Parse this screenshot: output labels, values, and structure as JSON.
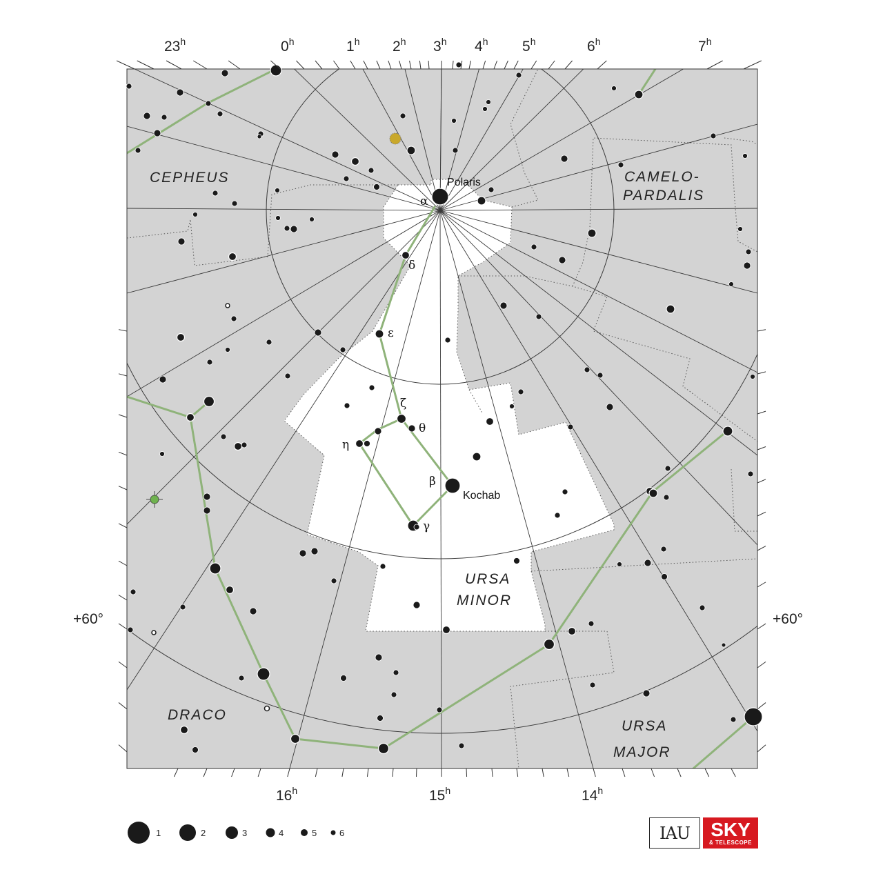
{
  "constellations": {
    "cepheus": "CEPHEUS",
    "camelopardalis_line1": "CAMELO-",
    "camelopardalis_line2": "PARDALIS",
    "ursa_minor_line1": "URSA",
    "ursa_minor_line2": "MINOR",
    "draco": "DRACO",
    "ursa_major_line1": "URSA",
    "ursa_major_line2": "MAJOR"
  },
  "ra_labels_top": [
    {
      "h": "23",
      "sup": "h"
    },
    {
      "h": "0",
      "sup": "h"
    },
    {
      "h": "1",
      "sup": "h"
    },
    {
      "h": "2",
      "sup": "h"
    },
    {
      "h": "3",
      "sup": "h"
    },
    {
      "h": "4",
      "sup": "h"
    },
    {
      "h": "5",
      "sup": "h"
    },
    {
      "h": "6",
      "sup": "h"
    },
    {
      "h": "7",
      "sup": "h"
    }
  ],
  "ra_labels_bottom": [
    {
      "h": "16",
      "sup": "h"
    },
    {
      "h": "15",
      "sup": "h"
    },
    {
      "h": "14",
      "sup": "h"
    }
  ],
  "dec_labels": {
    "left": "+60°",
    "right": "+60°"
  },
  "star_names": {
    "polaris": "Polaris",
    "kochab": "Kochab"
  },
  "greek_labels": {
    "alpha": "α",
    "delta": "δ",
    "epsilon": "ε",
    "zeta": "ζ",
    "theta": "θ",
    "eta": "η",
    "beta": "β",
    "gamma": "γ"
  },
  "legend": {
    "magnitudes": [
      "1",
      "2",
      "3",
      "4",
      "5",
      "6"
    ]
  },
  "logos": {
    "iau": "IAU",
    "sky_big": "SKY",
    "sky_small": "& TELESCOPE"
  },
  "colors": {
    "chart_background": "#d3d3d3",
    "constellation_area": "#ffffff",
    "stick_figure": "#8fb37a",
    "grid_line": "#3a3a3a",
    "star": "#1a1a1a",
    "variable_star": "#c9a82b",
    "sky_logo": "#d71920"
  }
}
